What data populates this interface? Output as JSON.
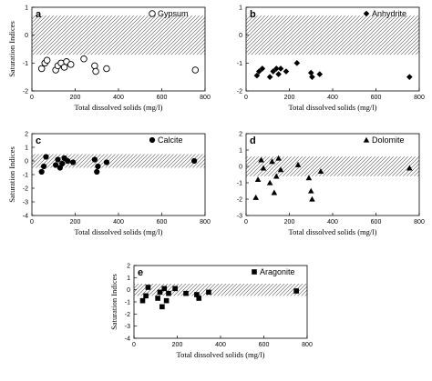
{
  "chart_data": [
    {
      "panel": "a",
      "type": "scatter",
      "mineral": "Gypsum",
      "marker": "circle-open",
      "xlabel": "Total dissolved solids (mg/l)",
      "ylabel": "Saturation Indices",
      "xlim": [
        0,
        800
      ],
      "ylim": [
        -2,
        1
      ],
      "xticks": [
        "0",
        "200",
        "400",
        "600",
        "800"
      ],
      "yticks": [
        "-2",
        "-1",
        "0",
        "1"
      ],
      "band": [
        -0.7,
        0.7
      ],
      "x": [
        45,
        60,
        70,
        110,
        120,
        135,
        150,
        160,
        180,
        240,
        290,
        295,
        345,
        755
      ],
      "y": [
        -1.2,
        -1.0,
        -0.9,
        -1.25,
        -1.1,
        -1.0,
        -1.15,
        -0.95,
        -1.05,
        -0.85,
        -1.1,
        -1.3,
        -1.2,
        -1.25
      ]
    },
    {
      "panel": "b",
      "type": "scatter",
      "mineral": "Anhydrite",
      "marker": "diamond",
      "xlabel": "Total dissolved solids (mg/l)",
      "ylabel": "",
      "xlim": [
        0,
        800
      ],
      "ylim": [
        -2,
        1
      ],
      "xticks": [
        "0",
        "200",
        "400",
        "600",
        "800"
      ],
      "yticks": [
        "-2",
        "-1",
        "0",
        "1"
      ],
      "band": [
        -0.7,
        0.7
      ],
      "x": [
        50,
        60,
        75,
        110,
        125,
        140,
        150,
        160,
        185,
        235,
        300,
        305,
        340,
        755
      ],
      "y": [
        -1.45,
        -1.3,
        -1.2,
        -1.5,
        -1.3,
        -1.2,
        -1.4,
        -1.2,
        -1.3,
        -1.0,
        -1.35,
        -1.5,
        -1.4,
        -1.5
      ]
    },
    {
      "panel": "c",
      "type": "scatter",
      "mineral": "Calcite",
      "marker": "circle-filled",
      "xlabel": "Total dissolved solids (mg/l)",
      "ylabel": "Saturation Indices",
      "xlim": [
        0,
        800
      ],
      "ylim": [
        -4,
        2
      ],
      "xticks": [
        "0",
        "200",
        "400",
        "600",
        "800"
      ],
      "yticks": [
        "-4",
        "-3",
        "-2",
        "-1",
        "0",
        "1",
        "2"
      ],
      "band": [
        -0.5,
        0.5
      ],
      "x": [
        45,
        55,
        65,
        110,
        120,
        130,
        140,
        150,
        165,
        190,
        290,
        300,
        305,
        345,
        750
      ],
      "y": [
        -0.8,
        -0.4,
        0.3,
        -0.3,
        0.1,
        -0.5,
        -0.2,
        0.2,
        0.0,
        -0.1,
        0.1,
        -0.8,
        -0.4,
        -0.1,
        0.0
      ]
    },
    {
      "panel": "d",
      "type": "scatter",
      "mineral": "Dolomite",
      "marker": "triangle",
      "xlabel": "Total dissolved solids (mg/l)",
      "ylabel": "",
      "xlim": [
        0,
        800
      ],
      "ylim": [
        -3,
        2
      ],
      "xticks": [
        "0",
        "200",
        "400",
        "600",
        "800"
      ],
      "yticks": [
        "-3",
        "-2",
        "-1",
        "0",
        "1",
        "2"
      ],
      "band": [
        -0.6,
        0.6
      ],
      "x": [
        45,
        55,
        70,
        80,
        110,
        120,
        130,
        140,
        150,
        160,
        240,
        290,
        300,
        305,
        345,
        755
      ],
      "y": [
        -1.9,
        -0.8,
        0.4,
        -0.1,
        -1.0,
        0.3,
        -1.6,
        -0.6,
        0.5,
        -0.2,
        0.1,
        -0.7,
        -1.5,
        -2.0,
        -0.3,
        -0.1
      ]
    },
    {
      "panel": "e",
      "type": "scatter",
      "mineral": "Aragonite",
      "marker": "square",
      "xlabel": "Total dissolved solids (mg/l)",
      "ylabel": "Saturation Indices",
      "xlim": [
        0,
        800
      ],
      "ylim": [
        -4,
        2
      ],
      "xticks": [
        "0",
        "200",
        "400",
        "600",
        "800"
      ],
      "yticks": [
        "-4",
        "-3",
        "-2",
        "-1",
        "0",
        "1",
        "2"
      ],
      "band": [
        -0.5,
        0.5
      ],
      "x": [
        40,
        55,
        65,
        110,
        120,
        130,
        140,
        150,
        160,
        190,
        240,
        290,
        300,
        345,
        750
      ],
      "y": [
        -0.9,
        -0.5,
        0.2,
        -0.7,
        -0.2,
        -1.4,
        0.1,
        -0.9,
        -0.3,
        0.1,
        -0.3,
        -0.4,
        -0.7,
        -0.2,
        -0.1
      ]
    }
  ]
}
